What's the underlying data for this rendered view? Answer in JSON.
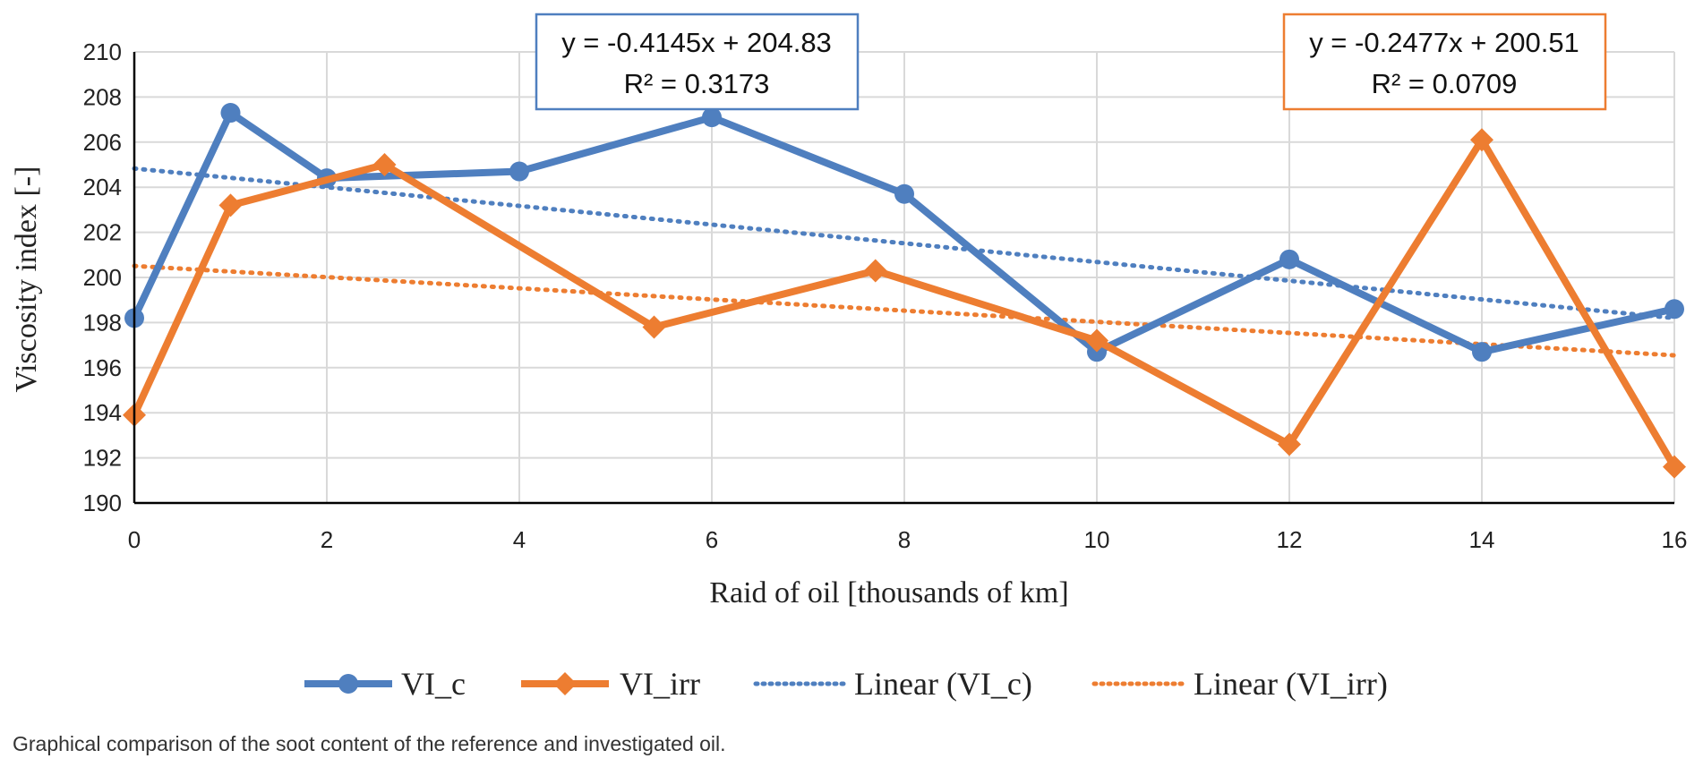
{
  "caption": "Graphical comparison of the soot content of the reference and investigated oil.",
  "chart_data": {
    "type": "line",
    "title": "",
    "xlabel": "Raid of oil [thousands of km]",
    "ylabel": "Viscosity index [-]",
    "xlim": [
      0,
      16
    ],
    "ylim": [
      190,
      210
    ],
    "x_ticks": [
      0,
      2,
      4,
      6,
      8,
      10,
      12,
      14,
      16
    ],
    "y_ticks": [
      190,
      192,
      194,
      196,
      198,
      200,
      202,
      204,
      206,
      208,
      210
    ],
    "grid": true,
    "legend_position": "bottom",
    "series": [
      {
        "name": "VI_c",
        "color": "#4F7FBF",
        "marker": "circle",
        "x": [
          0,
          1,
          2,
          4,
          6,
          8,
          10,
          12,
          14,
          16
        ],
        "y": [
          198.2,
          207.3,
          204.4,
          204.7,
          207.1,
          203.7,
          196.7,
          200.8,
          196.7,
          198.6
        ]
      },
      {
        "name": "VI_irr",
        "color": "#ED7D31",
        "marker": "diamond",
        "x": [
          0,
          1,
          2.6,
          5.4,
          7.7,
          10,
          12,
          14,
          16
        ],
        "y": [
          193.9,
          203.2,
          205.0,
          197.8,
          200.3,
          197.2,
          192.6,
          206.1,
          191.6
        ]
      }
    ],
    "trendlines": [
      {
        "name": "Linear (VI_c)",
        "color": "#4F7FBF",
        "slope": -0.4145,
        "intercept": 204.83,
        "equation": "y = -0.4145x + 204.83",
        "r2": "R² = 0.3173"
      },
      {
        "name": "Linear (VI_irr)",
        "color": "#ED7D31",
        "slope": -0.2477,
        "intercept": 200.51,
        "equation": "y = -0.2477x + 200.51",
        "r2": "R² = 0.0709"
      }
    ]
  }
}
